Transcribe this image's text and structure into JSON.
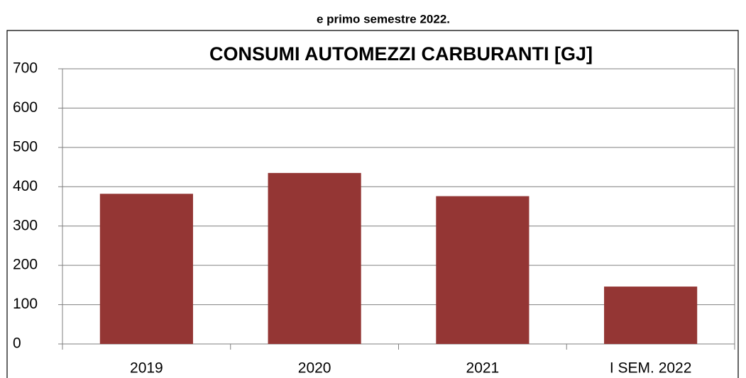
{
  "caption": "e primo semestre 2022.",
  "chart_data": {
    "type": "bar",
    "title": "CONSUMI AUTOMEZZI CARBURANTI [GJ]",
    "categories": [
      "2019",
      "2020",
      "2021",
      "I SEM. 2022"
    ],
    "values": [
      382,
      435,
      376,
      146
    ],
    "color": "#943634",
    "ylim": [
      0,
      700
    ],
    "yticks": [
      0,
      100,
      200,
      300,
      400,
      500,
      600,
      700
    ],
    "grid": true
  }
}
